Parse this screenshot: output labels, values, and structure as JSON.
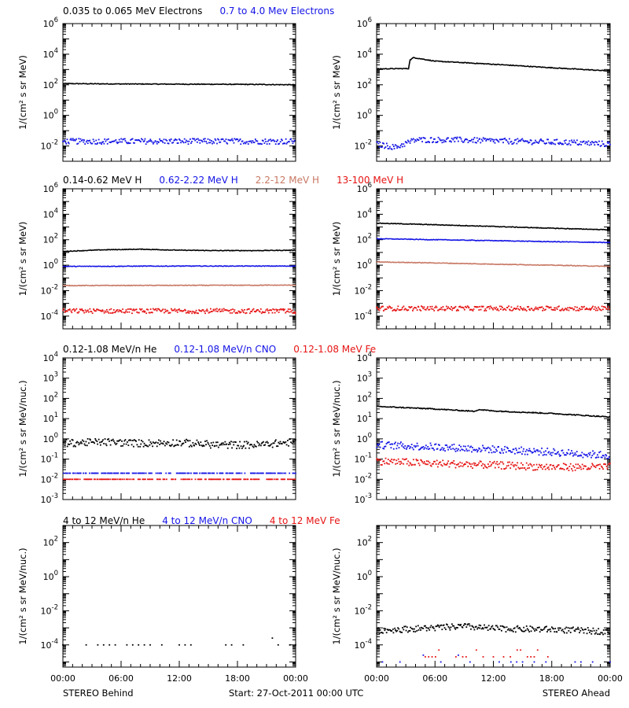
{
  "colors": {
    "black": "#000000",
    "blue": "#1414e6",
    "salmon": "#c87864",
    "red": "#e61414"
  },
  "footer": {
    "left": "STEREO Behind",
    "center": "Start: 27-Oct-2011 00:00 UTC",
    "right": "STEREO Ahead"
  },
  "chart_data": [
    {
      "id": "electrons",
      "type": "scatter",
      "titles": [
        {
          "text": "0.035 to 0.065 MeV Electrons",
          "color": "black"
        },
        {
          "text": "0.7 to 4.0 Mev Electrons",
          "color": "blue"
        }
      ],
      "ylabel": "1/(cm² s sr MeV)",
      "yscale": "log",
      "ylim": [
        0.001,
        1000000
      ],
      "yticks": [
        {
          "label": "10",
          "exp": "-2"
        },
        {
          "label": "10",
          "exp": "0"
        },
        {
          "label": "10",
          "exp": "2"
        },
        {
          "label": "10",
          "exp": "4"
        },
        {
          "label": "10",
          "exp": "6"
        }
      ],
      "xlim": [
        0,
        24
      ],
      "xtick_labels": [
        "00:00",
        "06:00",
        "12:00",
        "18:00",
        "00:00"
      ],
      "panels": [
        {
          "name": "STEREO Behind",
          "series": [
            {
              "name": "0.035 to 0.065 MeV Electrons",
              "color": "black",
              "style": "line",
              "x": [
                0,
                4,
                8,
                12,
                16,
                20,
                24
              ],
              "y": [
                120,
                115,
                112,
                110,
                108,
                105,
                100
              ]
            },
            {
              "name": "0.7 to 4.0 Mev Electrons",
              "color": "blue",
              "style": "dots",
              "x": [
                0,
                6,
                12,
                18,
                24
              ],
              "y": [
                0.02,
                0.02,
                0.02,
                0.02,
                0.02
              ]
            }
          ]
        },
        {
          "name": "STEREO Ahead",
          "series": [
            {
              "name": "0.035 to 0.065 MeV Electrons",
              "color": "black",
              "style": "line",
              "x": [
                0,
                3.3,
                3.4,
                3.8,
                6,
                12,
                18,
                24
              ],
              "y": [
                1100,
                1150,
                4000,
                6000,
                3500,
                2200,
                1300,
                800
              ]
            },
            {
              "name": "0.7 to 4.0 Mev Electrons",
              "color": "blue",
              "style": "dots",
              "x": [
                0,
                2,
                3,
                4,
                8,
                14,
                20,
                24
              ],
              "y": [
                0.013,
                0.008,
                0.015,
                0.025,
                0.025,
                0.02,
                0.017,
                0.013
              ]
            }
          ]
        }
      ]
    },
    {
      "id": "protons",
      "type": "scatter",
      "titles": [
        {
          "text": "0.14-0.62 MeV H",
          "color": "black"
        },
        {
          "text": "0.62-2.22 MeV H",
          "color": "blue"
        },
        {
          "text": "2.2-12 MeV H",
          "color": "salmon"
        },
        {
          "text": "13-100 MeV H",
          "color": "red"
        }
      ],
      "ylabel": "1/(cm² s sr MeV)",
      "yscale": "log",
      "ylim": [
        1e-05,
        1000000
      ],
      "yticks": [
        {
          "label": "10",
          "exp": "-4"
        },
        {
          "label": "10",
          "exp": "-2"
        },
        {
          "label": "10",
          "exp": "0"
        },
        {
          "label": "10",
          "exp": "2"
        },
        {
          "label": "10",
          "exp": "4"
        },
        {
          "label": "10",
          "exp": "6"
        }
      ],
      "xlim": [
        0,
        24
      ],
      "xtick_labels": [
        "00:00",
        "06:00",
        "12:00",
        "18:00",
        "00:00"
      ],
      "panels": [
        {
          "name": "STEREO Behind",
          "series": [
            {
              "name": "0.14-0.62 MeV H",
              "color": "black",
              "style": "line",
              "x": [
                0,
                4,
                8,
                12,
                16,
                20,
                24
              ],
              "y": [
                12,
                16,
                18,
                15,
                14,
                14,
                15
              ]
            },
            {
              "name": "0.62-2.22 MeV H",
              "color": "blue",
              "style": "line",
              "x": [
                0,
                12,
                24
              ],
              "y": [
                0.8,
                0.85,
                0.85
              ]
            },
            {
              "name": "2.2-12 MeV H",
              "color": "salmon",
              "style": "line",
              "x": [
                0,
                12,
                24
              ],
              "y": [
                0.025,
                0.026,
                0.027
              ]
            },
            {
              "name": "13-100 MeV H",
              "color": "red",
              "style": "dots",
              "x": [
                0,
                12,
                24
              ],
              "y": [
                0.00025,
                0.00025,
                0.00025
              ]
            }
          ]
        },
        {
          "name": "STEREO Ahead",
          "series": [
            {
              "name": "0.14-0.62 MeV H",
              "color": "black",
              "style": "line",
              "x": [
                0,
                6,
                12,
                18,
                24
              ],
              "y": [
                2000,
                1500,
                1100,
                800,
                600
              ]
            },
            {
              "name": "0.62-2.22 MeV H",
              "color": "blue",
              "style": "line",
              "x": [
                0,
                6,
                12,
                18,
                24
              ],
              "y": [
                120,
                100,
                85,
                70,
                60
              ]
            },
            {
              "name": "2.2-12 MeV H",
              "color": "salmon",
              "style": "line",
              "x": [
                0,
                6,
                12,
                18,
                24
              ],
              "y": [
                1.8,
                1.5,
                1.2,
                1.0,
                0.8
              ]
            },
            {
              "name": "13-100 MeV H",
              "color": "red",
              "style": "dots",
              "x": [
                0,
                12,
                24
              ],
              "y": [
                0.0004,
                0.0004,
                0.0004
              ]
            }
          ]
        }
      ]
    },
    {
      "id": "ions-low",
      "type": "scatter",
      "titles": [
        {
          "text": "0.12-1.08 MeV/n He",
          "color": "black"
        },
        {
          "text": "0.12-1.08 MeV/n CNO",
          "color": "blue"
        },
        {
          "text": "0.12-1.08 MeV Fe",
          "color": "red"
        }
      ],
      "ylabel": "1/(cm² s sr MeV/nuc.)",
      "yscale": "log",
      "ylim": [
        0.001,
        10000
      ],
      "yticks": [
        {
          "label": "10",
          "exp": "-3"
        },
        {
          "label": "10",
          "exp": "-2"
        },
        {
          "label": "10",
          "exp": "-1"
        },
        {
          "label": "10",
          "exp": "0"
        },
        {
          "label": "10",
          "exp": "1"
        },
        {
          "label": "10",
          "exp": "2"
        },
        {
          "label": "10",
          "exp": "3"
        },
        {
          "label": "10",
          "exp": "4"
        }
      ],
      "xlim": [
        0,
        24
      ],
      "xtick_labels": [
        "00:00",
        "06:00",
        "12:00",
        "18:00",
        "00:00"
      ],
      "panels": [
        {
          "name": "STEREO Behind",
          "series": [
            {
              "name": "0.12-1.08 MeV/n He",
              "color": "black",
              "style": "dots",
              "x": [
                0,
                4,
                8,
                12,
                16,
                20,
                24
              ],
              "y": [
                0.6,
                0.7,
                0.6,
                0.65,
                0.5,
                0.5,
                0.7
              ]
            },
            {
              "name": "0.12-1.08 MeV/n CNO",
              "color": "blue",
              "style": "dots",
              "x": [
                0,
                24
              ],
              "y": [
                0.02,
                0.02
              ]
            },
            {
              "name": "0.12-1.08 MeV Fe",
              "color": "red",
              "style": "dots",
              "x": [
                0,
                24
              ],
              "y": [
                0.01,
                0.01
              ]
            }
          ]
        },
        {
          "name": "STEREO Ahead",
          "series": [
            {
              "name": "0.12-1.08 MeV/n He",
              "color": "black",
              "style": "line",
              "x": [
                0,
                6,
                10,
                10.5,
                12,
                18,
                24
              ],
              "y": [
                40,
                30,
                23,
                28,
                24,
                18,
                12
              ]
            },
            {
              "name": "0.12-1.08 MeV/n CNO",
              "color": "blue",
              "style": "dots",
              "x": [
                0,
                6,
                12,
                18,
                24
              ],
              "y": [
                0.5,
                0.4,
                0.3,
                0.22,
                0.15
              ]
            },
            {
              "name": "0.12-1.08 MeV Fe",
              "color": "red",
              "style": "dots",
              "x": [
                0,
                6,
                12,
                18,
                24
              ],
              "y": [
                0.08,
                0.06,
                0.05,
                0.04,
                0.04
              ]
            }
          ]
        }
      ]
    },
    {
      "id": "ions-high",
      "type": "scatter",
      "titles": [
        {
          "text": "4 to 12 MeV/n He",
          "color": "black"
        },
        {
          "text": "4 to 12 MeV/n CNO",
          "color": "blue"
        },
        {
          "text": "4 to 12 MeV Fe",
          "color": "red"
        }
      ],
      "ylabel": "1/(cm² s sr MeV/nuc.)",
      "yscale": "log",
      "ylim": [
        5e-06,
        1000
      ],
      "yticks": [
        {
          "label": "10",
          "exp": "-4"
        },
        {
          "label": "10",
          "exp": "-2"
        },
        {
          "label": "10",
          "exp": "0"
        },
        {
          "label": "10",
          "exp": "2"
        }
      ],
      "xlim": [
        0,
        24
      ],
      "xtick_labels": [
        "00:00",
        "06:00",
        "12:00",
        "18:00",
        "00:00"
      ],
      "panels": [
        {
          "name": "STEREO Behind",
          "series": [
            {
              "name": "4 to 12 MeV/n He",
              "color": "black",
              "style": "sparse",
              "x": [
                0,
                24
              ],
              "y": [
                0.0001,
                0.0001
              ]
            }
          ]
        },
        {
          "name": "STEREO Ahead",
          "series": [
            {
              "name": "4 to 12 MeV/n He",
              "color": "black",
              "style": "dots",
              "x": [
                0,
                6,
                9,
                12,
                18,
                24
              ],
              "y": [
                0.0007,
                0.001,
                0.0012,
                0.0009,
                0.0008,
                0.0006
              ]
            },
            {
              "name": "4 to 12 MeV/n CNO",
              "color": "blue",
              "style": "sparse",
              "x": [
                0,
                24
              ],
              "y": [
                1e-05,
                1e-05
              ]
            },
            {
              "name": "4 to 12 MeV Fe",
              "color": "red",
              "style": "sparse",
              "x": [
                5,
                19
              ],
              "y": [
                2e-05,
                2e-05
              ]
            }
          ]
        }
      ]
    }
  ]
}
